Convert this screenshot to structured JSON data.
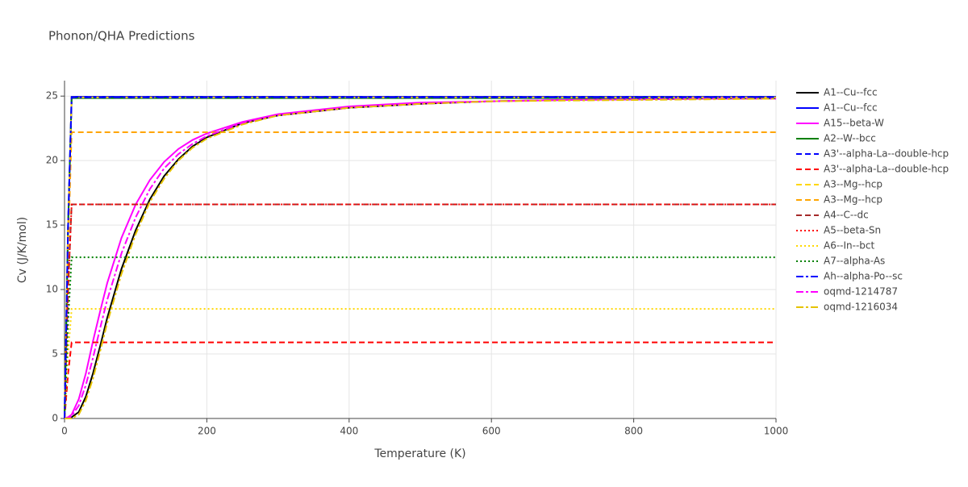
{
  "chart_data": {
    "type": "line",
    "title": "Phonon/QHA Predictions",
    "x_label": "Temperature (K)",
    "y_label": "Cv (J/K/mol)",
    "xlim": [
      0,
      1000
    ],
    "ylim": [
      0,
      26.2
    ],
    "xticks": [
      0,
      200,
      400,
      600,
      800,
      1000
    ],
    "yticks": [
      0,
      5,
      10,
      15,
      20,
      25
    ],
    "grid": true,
    "legend": "right",
    "series": [
      {
        "name": "A1--Cu--fcc",
        "color": "#000000",
        "dash": "solid",
        "x": [
          0,
          5,
          10,
          20,
          30,
          40,
          50,
          60,
          80,
          100,
          120,
          140,
          160,
          180,
          200,
          250,
          300,
          400,
          500,
          600,
          700,
          800,
          900,
          1000
        ],
        "values": [
          0,
          0,
          0.1,
          0.5,
          1.7,
          3.5,
          5.6,
          7.8,
          11.6,
          14.6,
          17,
          18.8,
          20.1,
          21.1,
          21.8,
          22.9,
          23.5,
          24.1,
          24.4,
          24.6,
          24.7,
          24.75,
          24.8,
          24.85
        ]
      },
      {
        "name": "A1--Cu--fcc",
        "color": "#0000ff",
        "dash": "solid",
        "x": [
          0,
          5,
          10,
          1000
        ],
        "values": [
          0,
          15,
          24.95,
          24.95
        ]
      },
      {
        "name": "A15--beta-W",
        "color": "#ff00ff",
        "dash": "solid",
        "x": [
          0,
          5,
          10,
          20,
          30,
          40,
          50,
          60,
          80,
          100,
          120,
          140,
          160,
          180,
          200,
          250,
          300,
          400,
          500,
          600,
          700,
          800,
          900,
          1000
        ],
        "values": [
          0,
          0.1,
          0.3,
          1.5,
          3.5,
          6,
          8.3,
          10.5,
          14,
          16.6,
          18.5,
          19.9,
          20.9,
          21.6,
          22.1,
          23,
          23.6,
          24.2,
          24.5,
          24.6,
          24.7,
          24.75,
          24.8,
          24.8
        ]
      },
      {
        "name": "A2--W--bcc",
        "color": "#008000",
        "dash": "solid",
        "x": [
          0,
          5,
          10,
          1000
        ],
        "values": [
          0,
          14.9,
          24.85,
          24.85
        ]
      },
      {
        "name": "A3'--alpha-La--double-hcp",
        "color": "#0000ff",
        "dash": "dash",
        "x": [
          0,
          5,
          10,
          1000
        ],
        "values": [
          0,
          14.9,
          24.9,
          24.9
        ]
      },
      {
        "name": "A3'--alpha-La--double-hcp",
        "color": "#ff0000",
        "dash": "dash",
        "x": [
          0,
          5,
          10,
          1000
        ],
        "values": [
          0,
          3.5,
          5.9,
          5.9
        ]
      },
      {
        "name": "A3--Mg--hcp",
        "color": "#ffd700",
        "dash": "dash",
        "x": [
          0,
          5,
          10,
          1000
        ],
        "values": [
          0,
          14.9,
          24.9,
          24.9
        ]
      },
      {
        "name": "A3--Mg--hcp",
        "color": "#ffa500",
        "dash": "dash",
        "x": [
          0,
          5,
          10,
          1000
        ],
        "values": [
          0,
          13.3,
          22.2,
          22.2
        ]
      },
      {
        "name": "A4--C--dc",
        "color": "#a52a2a",
        "dash": "dash",
        "x": [
          0,
          5,
          10,
          1000
        ],
        "values": [
          0,
          10,
          16.6,
          16.6
        ]
      },
      {
        "name": "A5--beta-Sn",
        "color": "#ff0000",
        "dash": "dot",
        "x": [
          0,
          5,
          10,
          1000
        ],
        "values": [
          0,
          10,
          16.6,
          16.6
        ]
      },
      {
        "name": "A6--In--bct",
        "color": "#ffd700",
        "dash": "dot",
        "x": [
          0,
          5,
          10,
          1000
        ],
        "values": [
          0,
          5.1,
          8.5,
          8.5
        ]
      },
      {
        "name": "A7--alpha-As",
        "color": "#008000",
        "dash": "dot",
        "x": [
          0,
          5,
          10,
          1000
        ],
        "values": [
          0,
          7.5,
          12.5,
          12.5
        ]
      },
      {
        "name": "Ah--alpha-Po--sc",
        "color": "#0000ff",
        "dash": "dashdot",
        "x": [
          0,
          5,
          10,
          1000
        ],
        "values": [
          0,
          14.9,
          24.9,
          24.9
        ]
      },
      {
        "name": "oqmd-1214787",
        "color": "#ff00ff",
        "dash": "dashdot",
        "x": [
          0,
          5,
          10,
          20,
          30,
          40,
          50,
          60,
          80,
          100,
          120,
          140,
          160,
          180,
          200,
          250,
          300,
          400,
          500,
          600,
          700,
          800,
          900,
          1000
        ],
        "values": [
          0,
          0,
          0.2,
          1,
          2.6,
          4.7,
          7,
          9.2,
          12.8,
          15.6,
          17.8,
          19.4,
          20.5,
          21.3,
          21.9,
          22.9,
          23.5,
          24.1,
          24.4,
          24.6,
          24.7,
          24.75,
          24.8,
          24.8
        ]
      },
      {
        "name": "oqmd-1216034",
        "color": "#e6c300",
        "dash": "dashdot",
        "x": [
          0,
          5,
          10,
          20,
          30,
          40,
          50,
          60,
          80,
          100,
          120,
          140,
          160,
          180,
          200,
          250,
          300,
          400,
          500,
          600,
          700,
          800,
          900,
          1000
        ],
        "values": [
          0,
          0,
          0,
          0.3,
          1.4,
          3.1,
          5.2,
          7.4,
          11.2,
          14.3,
          16.8,
          18.6,
          20,
          21,
          21.7,
          22.8,
          23.5,
          24.1,
          24.4,
          24.6,
          24.65,
          24.7,
          24.75,
          24.8
        ]
      }
    ]
  }
}
